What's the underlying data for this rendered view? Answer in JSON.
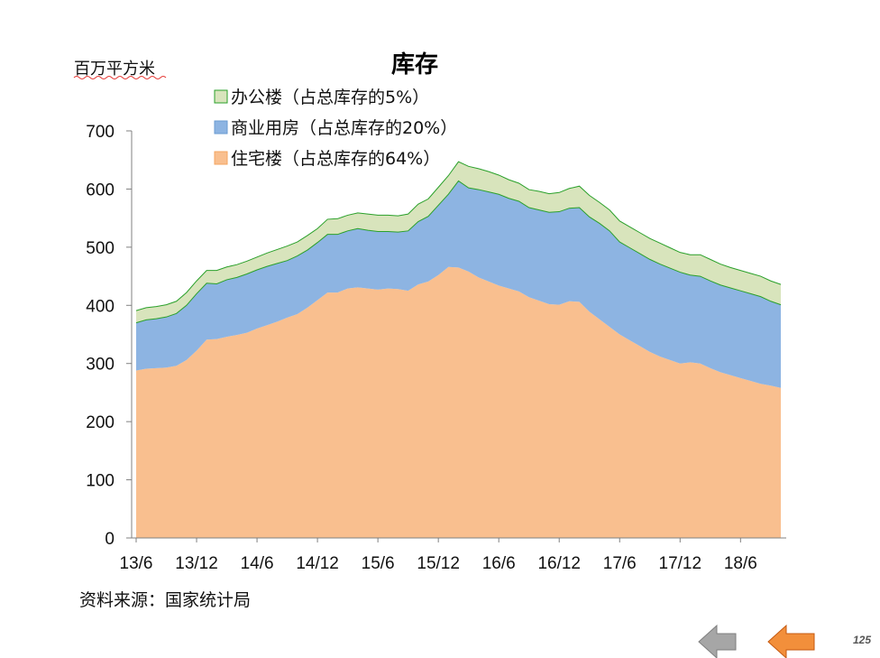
{
  "page": {
    "unit_label": "百万平方米",
    "source": "资料来源：国家统计局",
    "page_number": "125"
  },
  "nav": {
    "back_icon": "arrow-left-gray-icon",
    "prev_icon": "arrow-left-orange-icon",
    "colors": {
      "back": "#a6a6a6",
      "prev": "#f28f3b"
    }
  },
  "chart_data": {
    "type": "area",
    "stacked": true,
    "title": "库存",
    "ylim": [
      0,
      700
    ],
    "yticks": [
      0,
      100,
      200,
      300,
      400,
      500,
      600,
      700
    ],
    "xtick_labels": [
      "13/6",
      "13/12",
      "14/6",
      "14/12",
      "15/6",
      "15/12",
      "16/6",
      "16/12",
      "17/6",
      "17/12",
      "18/6"
    ],
    "x": [
      "13/6",
      "13/7",
      "13/8",
      "13/9",
      "13/10",
      "13/11",
      "13/12",
      "14/1",
      "14/2",
      "14/3",
      "14/4",
      "14/5",
      "14/6",
      "14/7",
      "14/8",
      "14/9",
      "14/10",
      "14/11",
      "14/12",
      "15/1",
      "15/2",
      "15/3",
      "15/4",
      "15/5",
      "15/6",
      "15/7",
      "15/8",
      "15/9",
      "15/10",
      "15/11",
      "15/12",
      "16/1",
      "16/2",
      "16/3",
      "16/4",
      "16/5",
      "16/6",
      "16/7",
      "16/8",
      "16/9",
      "16/10",
      "16/11",
      "16/12",
      "17/1",
      "17/2",
      "17/3",
      "17/4",
      "17/5",
      "17/6",
      "17/7",
      "17/8",
      "17/9",
      "17/10",
      "17/11",
      "17/12",
      "18/1",
      "18/2",
      "18/3",
      "18/4",
      "18/5",
      "18/6",
      "18/7",
      "18/8",
      "18/9",
      "18/10"
    ],
    "legend_position": "top",
    "series": [
      {
        "name": "住宅楼（占总库存的64%）",
        "color": "#f9bf8f",
        "values": [
          288,
          291,
          292,
          293,
          296,
          306,
          322,
          341,
          342,
          346,
          349,
          353,
          360,
          366,
          372,
          379,
          385,
          396,
          409,
          422,
          422,
          429,
          431,
          429,
          427,
          429,
          428,
          425,
          436,
          441,
          452,
          466,
          465,
          458,
          448,
          441,
          434,
          429,
          424,
          414,
          408,
          402,
          401,
          407,
          406,
          389,
          376,
          363,
          350,
          340,
          330,
          320,
          312,
          306,
          300,
          302,
          300,
          292,
          285,
          280,
          275,
          270,
          265,
          262,
          258
        ]
      },
      {
        "name": "商业用房（占总库存的20%）",
        "color": "#8db4e2",
        "values": [
          82,
          84,
          85,
          87,
          90,
          94,
          98,
          97,
          95,
          98,
          99,
          101,
          101,
          101,
          100,
          98,
          100,
          99,
          99,
          100,
          100,
          99,
          101,
          100,
          100,
          98,
          98,
          103,
          108,
          112,
          120,
          125,
          149,
          144,
          151,
          154,
          157,
          155,
          155,
          154,
          156,
          158,
          160,
          160,
          162,
          163,
          165,
          165,
          159,
          159,
          159,
          159,
          159,
          158,
          157,
          150,
          150,
          150,
          150,
          150,
          150,
          150,
          150,
          145,
          143
        ]
      },
      {
        "name": "办公楼（占总库存的5%）",
        "color": "#d8e4bc",
        "values": [
          21,
          21,
          21,
          21,
          21,
          22,
          22,
          22,
          23,
          22,
          22,
          22,
          22,
          23,
          24,
          25,
          24,
          25,
          24,
          26,
          27,
          27,
          27,
          28,
          28,
          28,
          28,
          29,
          30,
          30,
          31,
          32,
          33,
          37,
          36,
          35,
          33,
          32,
          31,
          31,
          32,
          32,
          33,
          34,
          37,
          37,
          36,
          36,
          36,
          36,
          36,
          36,
          36,
          35,
          34,
          35,
          37,
          37,
          36,
          35,
          35,
          35,
          35,
          35,
          35
        ]
      }
    ]
  }
}
